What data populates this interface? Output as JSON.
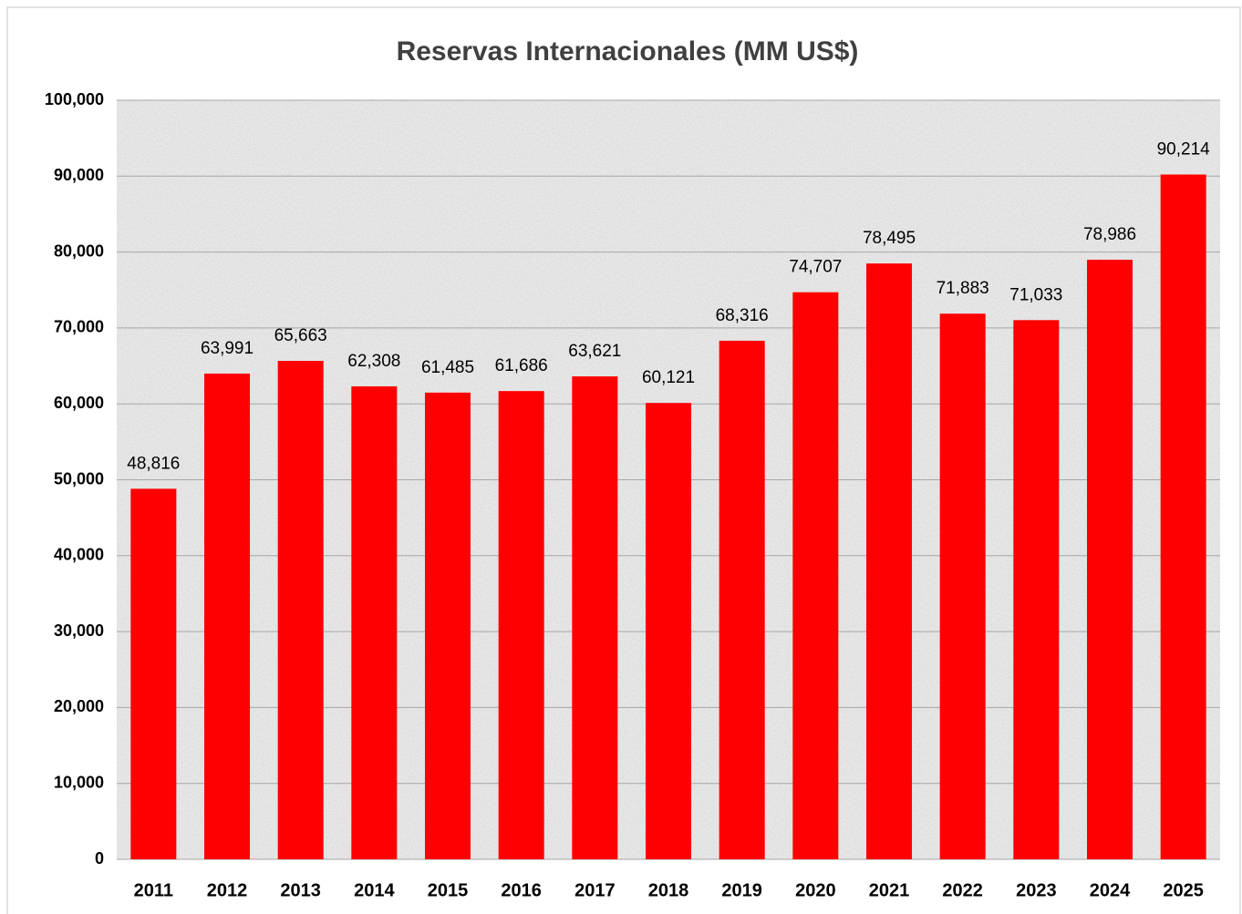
{
  "chart_data": {
    "type": "bar",
    "title": "Reservas Internacionales (MM US$)",
    "categories": [
      "2011",
      "2012",
      "2013",
      "2014",
      "2015",
      "2016",
      "2017",
      "2018",
      "2019",
      "2020",
      "2021",
      "2022",
      "2023",
      "2024",
      "2025"
    ],
    "values": [
      48816,
      63991,
      65663,
      62308,
      61485,
      61686,
      63621,
      60121,
      68316,
      74707,
      78495,
      71883,
      71033,
      78986,
      90214
    ],
    "value_labels": [
      "48,816",
      "63,991",
      "65,663",
      "62,308",
      "61,485",
      "61,686",
      "63,621",
      "60,121",
      "68,316",
      "74,707",
      "78,495",
      "71,883",
      "71,033",
      "78,986",
      "90,214"
    ],
    "color": "#ff0000",
    "ylim": [
      0,
      100000
    ],
    "yticks": [
      0,
      {
        "value": 10000,
        "label": "10,000"
      },
      {
        "value": 20000,
        "label": "20,000"
      },
      {
        "value": 30000,
        "label": "30,000"
      },
      {
        "value": 40000,
        "label": "40,000"
      },
      {
        "value": 50000,
        "label": "50,000"
      },
      {
        "value": 60000,
        "label": "60,000"
      },
      {
        "value": 70000,
        "label": "70,000"
      },
      {
        "value": 80000,
        "label": "80,000"
      },
      {
        "value": 90000,
        "label": "90,000"
      },
      {
        "value": 100000,
        "label": "100,000"
      }
    ],
    "grid": true
  }
}
